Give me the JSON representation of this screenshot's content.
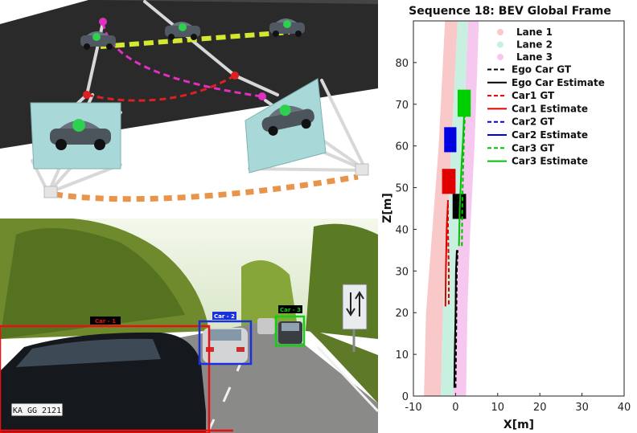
{
  "detections": [
    {
      "label": "Car - 1",
      "color": "#e81010"
    },
    {
      "label": "Car - 2",
      "color": "#1830e0"
    },
    {
      "label": "Car - 3",
      "color": "#10d010"
    }
  ],
  "plate_text": "KA GG 2121",
  "chart_data": {
    "type": "line",
    "title": "Sequence 18: BEV Global Frame",
    "xlabel": "X[m]",
    "ylabel": "Z[m]",
    "xlim": [
      -10,
      40
    ],
    "ylim": [
      0,
      90
    ],
    "xticks": [
      "-10",
      "0",
      "10",
      "20",
      "30",
      "40"
    ],
    "yticks": [
      "0",
      "10",
      "20",
      "30",
      "40",
      "50",
      "60",
      "70",
      "80"
    ],
    "grid": false,
    "legend_position": "top-right",
    "lanes": [
      {
        "name": "Lane 1",
        "color": "#f9c8c8",
        "left": [
          [
            -7.5,
            0
          ],
          [
            -7,
            20
          ],
          [
            -5.5,
            40
          ],
          [
            -4,
            60
          ],
          [
            -3,
            80
          ],
          [
            -2.5,
            90
          ]
        ],
        "right": [
          [
            -3.5,
            0
          ],
          [
            -3,
            20
          ],
          [
            -2,
            40
          ],
          [
            -1,
            60
          ],
          [
            0,
            80
          ],
          [
            0.5,
            90
          ]
        ]
      },
      {
        "name": "Lane 2",
        "color": "#c8f0e0",
        "left": [
          [
            -3.5,
            0
          ],
          [
            -3,
            20
          ],
          [
            -2,
            40
          ],
          [
            -1,
            60
          ],
          [
            0,
            80
          ],
          [
            0.5,
            90
          ]
        ],
        "right": [
          [
            -0.5,
            0
          ],
          [
            0,
            20
          ],
          [
            0.8,
            40
          ],
          [
            1.8,
            60
          ],
          [
            2.6,
            80
          ],
          [
            3,
            90
          ]
        ]
      },
      {
        "name": "Lane 3",
        "color": "#f6c8f0",
        "left": [
          [
            -0.5,
            0
          ],
          [
            0,
            20
          ],
          [
            0.8,
            40
          ],
          [
            1.8,
            60
          ],
          [
            2.6,
            80
          ],
          [
            3,
            90
          ]
        ],
        "right": [
          [
            2.5,
            0
          ],
          [
            2.8,
            20
          ],
          [
            3.5,
            40
          ],
          [
            4.5,
            60
          ],
          [
            5.2,
            80
          ],
          [
            5.5,
            90
          ]
        ]
      }
    ],
    "series": [
      {
        "name": "Ego Car GT",
        "color": "#000000",
        "dash": true,
        "points": [
          [
            0,
            2
          ],
          [
            0.1,
            10
          ],
          [
            0.2,
            20
          ],
          [
            0.3,
            30
          ],
          [
            0.5,
            35
          ]
        ]
      },
      {
        "name": "Ego Car Estimate",
        "color": "#000000",
        "dash": false,
        "points": [
          [
            -0.3,
            2
          ],
          [
            -0.2,
            10
          ],
          [
            0,
            20
          ],
          [
            0.1,
            30
          ],
          [
            0.3,
            35
          ]
        ]
      },
      {
        "name": "Car1 GT",
        "color": "#e00000",
        "dash": true,
        "points": [
          [
            -1.6,
            22
          ],
          [
            -1.6,
            30
          ],
          [
            -1.8,
            40
          ],
          [
            -1.8,
            47
          ]
        ]
      },
      {
        "name": "Car1 Estimate",
        "color": "#e00000",
        "dash": false,
        "points": [
          [
            -2.4,
            21.5
          ],
          [
            -2.3,
            30
          ],
          [
            -2.1,
            40
          ],
          [
            -1.8,
            47
          ]
        ]
      },
      {
        "name": "Car2 GT",
        "color": "#0000e0",
        "dash": true,
        "points": []
      },
      {
        "name": "Car2 Estimate",
        "color": "#0000e0",
        "dash": false,
        "points": []
      },
      {
        "name": "Car3 GT",
        "color": "#00c000",
        "dash": true,
        "points": [
          [
            1.5,
            36
          ],
          [
            1.6,
            45
          ],
          [
            1.8,
            55
          ],
          [
            2,
            62
          ],
          [
            2.2,
            67
          ]
        ]
      },
      {
        "name": "Car3 Estimate",
        "color": "#00c000",
        "dash": false,
        "points": [
          [
            0.8,
            36
          ],
          [
            1.0,
            45
          ],
          [
            1.4,
            55
          ],
          [
            1.8,
            62
          ],
          [
            2.0,
            67
          ]
        ]
      }
    ],
    "boxes": [
      {
        "name": "Car1 box",
        "color": "#e00000",
        "xmin": -3.2,
        "xmax": 0,
        "zmin": 48.5,
        "zmax": 54.5
      },
      {
        "name": "Car2 box",
        "color": "#0000e0",
        "xmin": -2.7,
        "xmax": 0.2,
        "zmin": 58.5,
        "zmax": 64.5
      },
      {
        "name": "Car3 box",
        "color": "#00d000",
        "xmin": 0.5,
        "xmax": 3.6,
        "zmin": 67,
        "zmax": 73.5
      },
      {
        "name": "Ego box",
        "color": "#000000",
        "xmin": -0.7,
        "xmax": 2.5,
        "zmin": 42.5,
        "zmax": 48.5
      }
    ]
  }
}
